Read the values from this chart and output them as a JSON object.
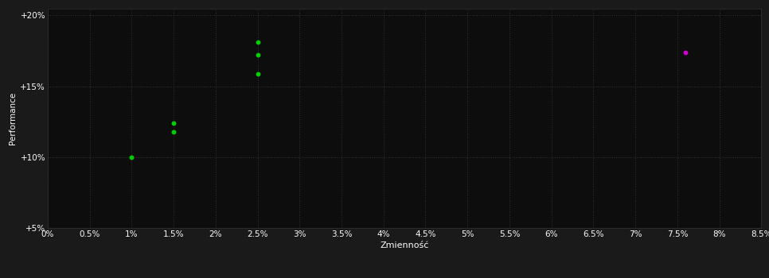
{
  "background_color": "#1a1a1a",
  "plot_bg_color": "#0d0d0d",
  "grid_color": "#333333",
  "text_color": "#ffffff",
  "xlabel": "Zmienność",
  "ylabel": "Performance",
  "xlim": [
    0.0,
    0.085
  ],
  "ylim": [
    0.05,
    0.205
  ],
  "x_ticks": [
    0.0,
    0.005,
    0.01,
    0.015,
    0.02,
    0.025,
    0.03,
    0.035,
    0.04,
    0.045,
    0.05,
    0.055,
    0.06,
    0.065,
    0.07,
    0.075,
    0.08,
    0.085
  ],
  "x_tick_labels": [
    "0%",
    "0.5%",
    "1%",
    "1.5%",
    "2%",
    "2.5%",
    "3%",
    "3.5%",
    "4%",
    "4.5%",
    "5%",
    "5.5%",
    "6%",
    "6.5%",
    "7%",
    "7.5%",
    "8%",
    "8.5%"
  ],
  "y_ticks": [
    0.05,
    0.1,
    0.15,
    0.2
  ],
  "y_tick_labels": [
    "+5%",
    "+10%",
    "+15%",
    "+20%"
  ],
  "green_points": [
    [
      0.01,
      0.1
    ],
    [
      0.015,
      0.124
    ],
    [
      0.015,
      0.118
    ],
    [
      0.025,
      0.181
    ],
    [
      0.025,
      0.172
    ],
    [
      0.025,
      0.159
    ]
  ],
  "purple_points": [
    [
      0.076,
      0.174
    ]
  ],
  "green_color": "#00cc00",
  "purple_color": "#cc00cc",
  "point_size": 18,
  "font_size_ticks": 7.5,
  "font_size_label": 8,
  "font_size_ylabel": 7.5
}
